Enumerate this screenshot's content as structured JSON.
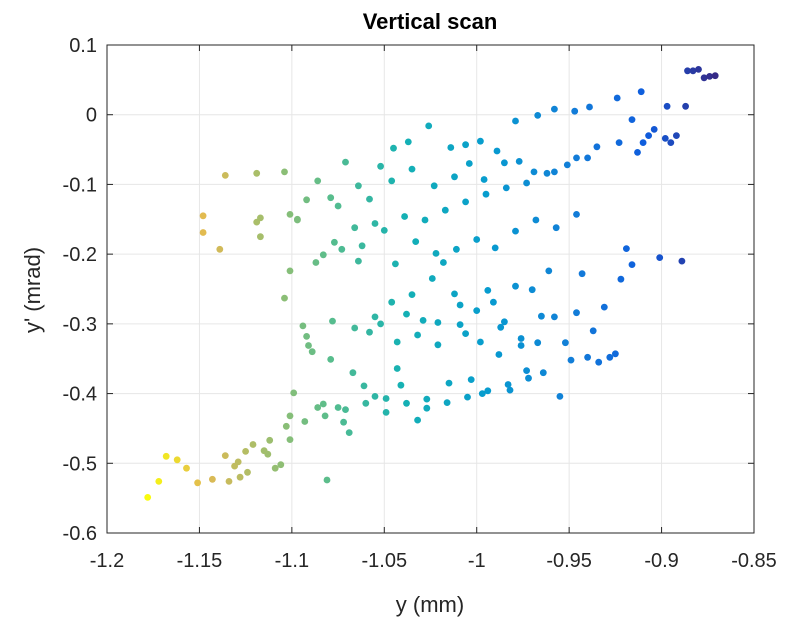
{
  "chart_data": {
    "type": "scatter",
    "title": "Vertical scan",
    "xlabel": "y (mm)",
    "ylabel": "y' (mrad)",
    "xlim": [
      -1.2,
      -0.85
    ],
    "ylim": [
      -0.6,
      0.1
    ],
    "xticks": [
      -1.2,
      -1.15,
      -1.1,
      -1.05,
      -1,
      -0.95,
      -0.9,
      -0.85
    ],
    "xtick_labels": [
      "-1.2",
      "-1.15",
      "-1.1",
      "-1.05",
      "-1",
      "-0.95",
      "-0.9",
      "-0.85"
    ],
    "yticks": [
      -0.6,
      -0.5,
      -0.4,
      -0.3,
      -0.2,
      -0.1,
      0,
      0.1
    ],
    "ytick_labels": [
      "-0.6",
      "-0.5",
      "-0.4",
      "-0.3",
      "-0.2",
      "-0.1",
      "0",
      "0.1"
    ],
    "grid": true,
    "colormap": "parula",
    "color_by": "x",
    "colors": {
      "low": "#f9fb0e",
      "mid": "#20b2aa",
      "high": "#352a87",
      "grid": "#e6e6e6",
      "axis": "#262626"
    },
    "x": [
      -1.178,
      -1.172,
      -1.168,
      -1.162,
      -1.151,
      -1.148,
      -1.139,
      -1.136,
      -1.134,
      -1.131,
      -1.128,
      -1.124,
      -1.121,
      -1.119,
      -1.117,
      -1.112,
      -1.109,
      -1.106,
      -1.104,
      -1.101,
      -1.099,
      -1.097,
      -1.094,
      -1.091,
      -1.089,
      -1.086,
      -1.083,
      -1.081,
      -1.078,
      -1.075,
      -1.072,
      -1.069,
      -1.067,
      -1.064,
      -1.061,
      -1.058,
      -1.055,
      -1.052,
      -1.049,
      -1.046,
      -1.043,
      -1.041,
      -1.038,
      -1.035,
      -1.032,
      -1.029,
      -1.027,
      -1.024,
      -1.021,
      -1.018,
      -1.015,
      -1.012,
      -1.009,
      -1.006,
      -1.003,
      -1.0,
      -0.997,
      -0.994,
      -0.991,
      -0.988,
      -0.985,
      -0.982,
      -0.979,
      -0.976,
      -0.973,
      -0.97,
      -0.967,
      -0.964,
      -0.961,
      -0.958,
      -0.955,
      -0.952,
      -0.949,
      -0.946,
      -0.943,
      -0.94,
      -0.937,
      -0.934,
      -0.931,
      -0.928,
      -0.925,
      -0.922,
      -0.919,
      -0.916,
      -0.913,
      -0.91,
      -0.907,
      -0.904,
      -0.901,
      -0.898,
      -0.895,
      -0.892,
      -0.889,
      -0.886,
      -0.883,
      -0.88,
      -0.877,
      -0.874,
      -0.871,
      -1.148,
      -1.136,
      -1.117,
      -1.101,
      -1.097,
      -1.086,
      -1.075,
      -1.064,
      -1.052,
      -1.046,
      -1.035,
      -1.023,
      -1.012,
      -1.004,
      -0.996,
      -0.985,
      -0.977,
      -0.969,
      -0.958,
      -0.946,
      -0.935,
      -0.923,
      -0.916,
      -0.897,
      -0.887,
      -1.119,
      -1.104,
      -1.092,
      -1.079,
      -1.071,
      -1.058,
      -1.045,
      -1.037,
      -1.026,
      -1.014,
      -1.006,
      -0.998,
      -0.989,
      -0.979,
      -0.967,
      -0.958,
      -0.947,
      -0.939,
      -0.924,
      -0.911,
      -1.101,
      -1.087,
      -1.077,
      -1.066,
      -1.055,
      -1.044,
      -1.033,
      -1.022,
      -1.011,
      -1.0,
      -0.99,
      -0.979,
      -0.968,
      -0.957,
      -0.946,
      -1.083,
      -1.073,
      -1.062,
      -1.05,
      -1.039,
      -1.028,
      -1.017,
      -1.006,
      -0.995,
      -0.984,
      -0.973,
      -0.962,
      -0.951,
      -0.94,
      -1.092,
      -1.079,
      -1.066,
      -1.055,
      -1.043,
      -1.032,
      -1.021,
      -1.009,
      -0.998,
      -0.987,
      -0.976,
      -0.965,
      -1.125,
      -1.113,
      -1.103,
      -1.093,
      -1.082,
      -1.071,
      -1.06,
      -1.049,
      -1.038,
      -1.027,
      -1.016,
      -1.005,
      -0.994,
      -0.983,
      -0.972,
      -1.157,
      -1.143,
      -1.129,
      -1.115,
      -1.101
    ],
    "y": [
      -0.549,
      -0.526,
      -0.49,
      -0.495,
      -0.528,
      -0.145,
      -0.193,
      -0.489,
      -0.526,
      -0.504,
      -0.52,
      -0.513,
      -0.473,
      -0.154,
      -0.175,
      -0.467,
      -0.507,
      -0.502,
      -0.263,
      -0.432,
      -0.399,
      -0.15,
      -0.303,
      -0.331,
      -0.34,
      -0.42,
      -0.415,
      -0.524,
      -0.296,
      -0.42,
      -0.441,
      -0.456,
      -0.37,
      -0.21,
      -0.389,
      -0.312,
      -0.404,
      -0.3,
      -0.427,
      -0.269,
      -0.364,
      -0.388,
      -0.286,
      -0.258,
      -0.438,
      -0.295,
      -0.408,
      -0.235,
      -0.33,
      -0.212,
      -0.385,
      -0.257,
      -0.273,
      -0.314,
      -0.38,
      -0.281,
      -0.4,
      -0.252,
      -0.269,
      -0.344,
      -0.297,
      -0.395,
      -0.246,
      -0.321,
      -0.367,
      -0.251,
      -0.327,
      -0.37,
      -0.224,
      -0.29,
      -0.404,
      -0.327,
      -0.352,
      -0.284,
      -0.228,
      -0.348,
      -0.31,
      -0.355,
      -0.276,
      -0.348,
      -0.343,
      -0.236,
      -0.192,
      -0.215,
      -0.054,
      -0.04,
      -0.03,
      -0.021,
      -0.205,
      -0.034,
      -0.04,
      -0.03,
      -0.21,
      0.063,
      0.063,
      0.065,
      0.053,
      0.055,
      0.056,
      -0.169,
      -0.087,
      -0.148,
      -0.143,
      -0.151,
      -0.095,
      -0.131,
      -0.102,
      -0.074,
      -0.095,
      -0.078,
      -0.102,
      -0.089,
      -0.07,
      -0.093,
      -0.069,
      -0.067,
      -0.082,
      -0.082,
      -0.062,
      -0.046,
      -0.04,
      -0.007,
      0.012,
      0.012,
      -0.084,
      -0.082,
      -0.122,
      -0.119,
      -0.068,
      -0.121,
      -0.048,
      -0.039,
      -0.016,
      -0.047,
      -0.043,
      -0.038,
      -0.052,
      -0.009,
      -0.001,
      0.008,
      0.005,
      0.011,
      0.024,
      0.033,
      -0.224,
      -0.212,
      -0.183,
      -0.162,
      -0.156,
      -0.214,
      -0.182,
      -0.199,
      -0.193,
      -0.179,
      -0.191,
      -0.167,
      -0.151,
      -0.162,
      -0.143,
      -0.201,
      -0.193,
      -0.188,
      -0.166,
      -0.146,
      -0.151,
      -0.137,
      -0.125,
      -0.114,
      -0.105,
      -0.098,
      -0.084,
      -0.072,
      -0.062,
      -0.318,
      -0.351,
      -0.306,
      -0.29,
      -0.326,
      -0.316,
      -0.298,
      -0.301,
      -0.326,
      -0.305,
      -0.331,
      -0.289,
      -0.483,
      -0.487,
      -0.447,
      -0.44,
      -0.432,
      -0.423,
      -0.414,
      -0.407,
      -0.414,
      -0.421,
      -0.413,
      -0.405,
      -0.396,
      -0.387,
      -0.378,
      -0.507,
      -0.523,
      -0.498,
      -0.482,
      -0.466
    ]
  }
}
